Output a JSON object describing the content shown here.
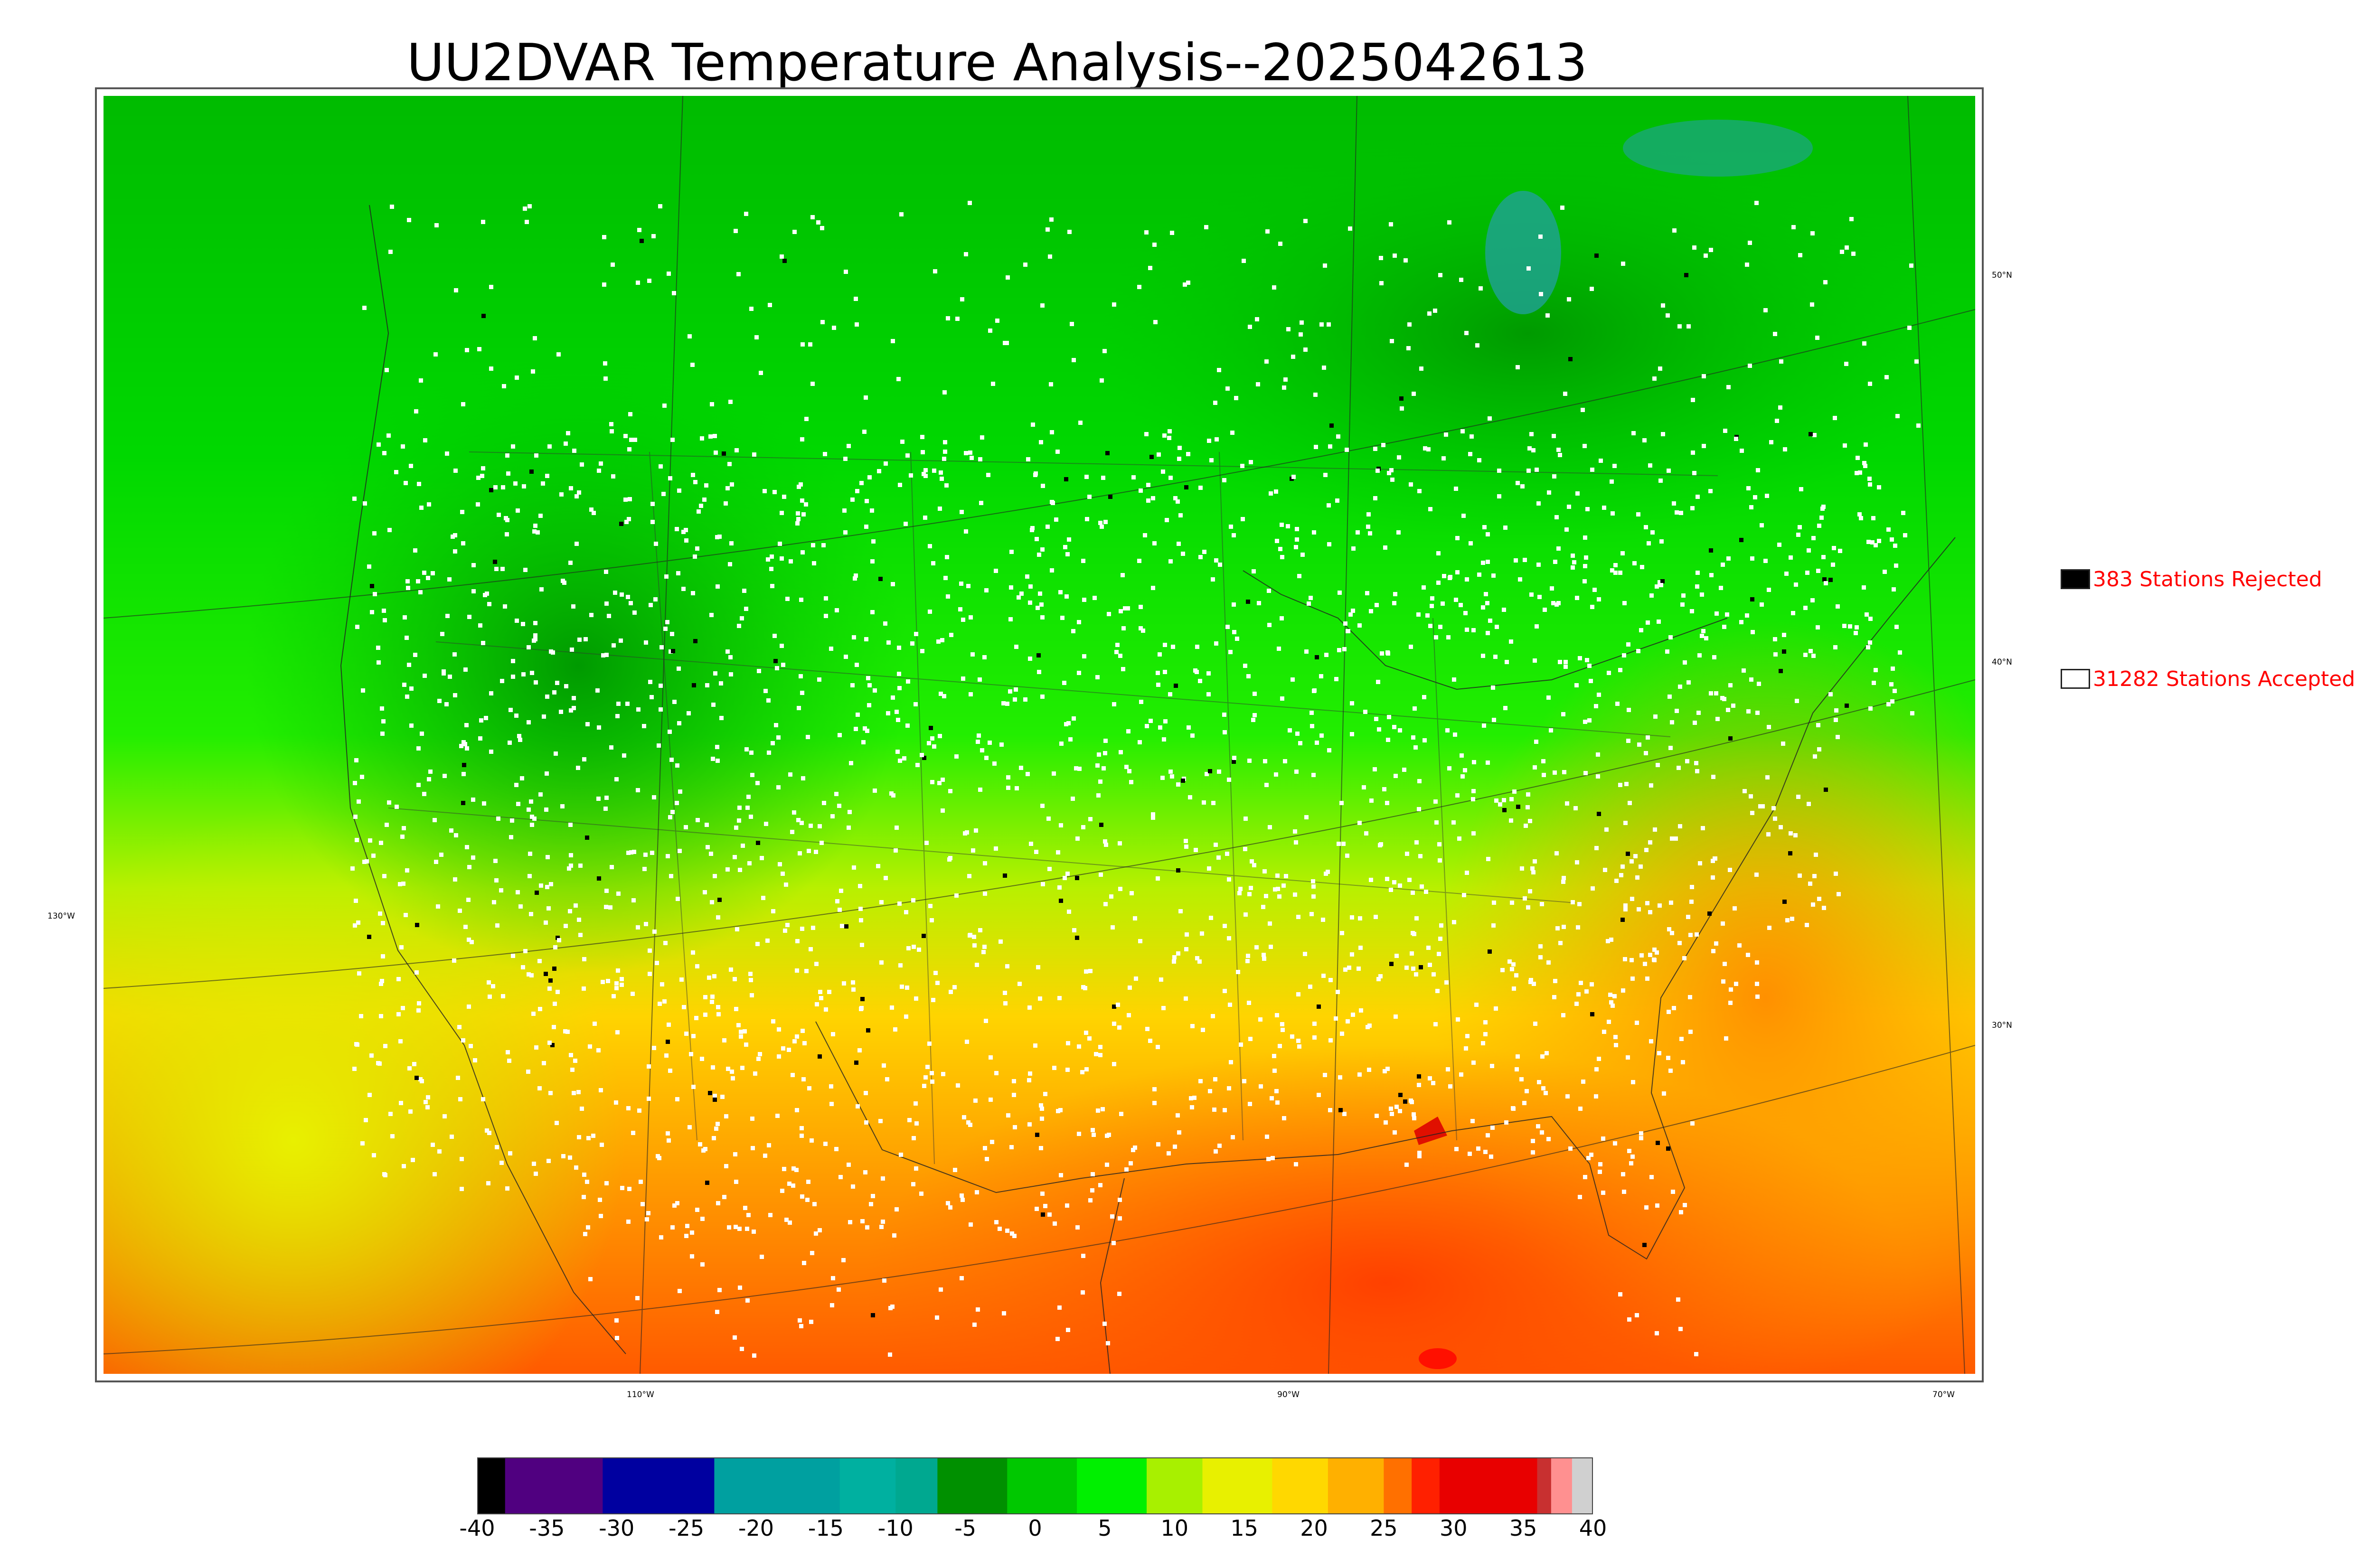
{
  "title": "UU2DVAR Temperature Analysis--2025042613",
  "map": {
    "lon_labels": [
      "130°W",
      "110°W",
      "90°W",
      "70°W"
    ],
    "lat_labels": [
      "50°N",
      "40°N",
      "30°N"
    ],
    "colors": {
      "cold_north": "#00b400",
      "mid_green": "#00e800",
      "yellow_green": "#c8f000",
      "orange": "#ffb400",
      "hot_gulf": "#ff5a00",
      "lake_teal": "#22a0a0",
      "station_accepted": "#ffffff",
      "station_rejected": "#000000"
    }
  },
  "legend": {
    "rejected_label": "383 Stations Rejected",
    "accepted_label": "31282 Stations Accepted",
    "rejected_color": "#000000",
    "accepted_color": "#ffffff",
    "text_color": "#ff0000"
  },
  "colorbar": {
    "min": -40,
    "max": 40,
    "tick_labels": [
      "-40",
      "-35",
      "-30",
      "-25",
      "-20",
      "-15",
      "-10",
      "-5",
      "0",
      "5",
      "10",
      "15",
      "20",
      "25",
      "30",
      "35",
      "40"
    ],
    "segments": [
      {
        "from": -40,
        "to": -38,
        "color": "#000000"
      },
      {
        "from": -38,
        "to": -31,
        "color": "#500080"
      },
      {
        "from": -31,
        "to": -23,
        "color": "#0000a0"
      },
      {
        "from": -23,
        "to": -14,
        "color": "#00a0a0"
      },
      {
        "from": -14,
        "to": -10,
        "color": "#00b0a0"
      },
      {
        "from": -10,
        "to": -7,
        "color": "#00a890"
      },
      {
        "from": -7,
        "to": -2,
        "color": "#009000"
      },
      {
        "from": -2,
        "to": 3,
        "color": "#00c800"
      },
      {
        "from": 3,
        "to": 8,
        "color": "#00f000"
      },
      {
        "from": 8,
        "to": 12,
        "color": "#a8f000"
      },
      {
        "from": 12,
        "to": 17,
        "color": "#e8f000"
      },
      {
        "from": 17,
        "to": 21,
        "color": "#ffd800"
      },
      {
        "from": 21,
        "to": 25,
        "color": "#ffb000"
      },
      {
        "from": 25,
        "to": 27,
        "color": "#ff7000"
      },
      {
        "from": 27,
        "to": 29,
        "color": "#ff2000"
      },
      {
        "from": 29,
        "to": 36,
        "color": "#e80000"
      },
      {
        "from": 36,
        "to": 37,
        "color": "#c83030"
      },
      {
        "from": 37,
        "to": 38.5,
        "color": "#ff9090"
      },
      {
        "from": 38.5,
        "to": 40,
        "color": "#d0d0d0"
      }
    ]
  }
}
